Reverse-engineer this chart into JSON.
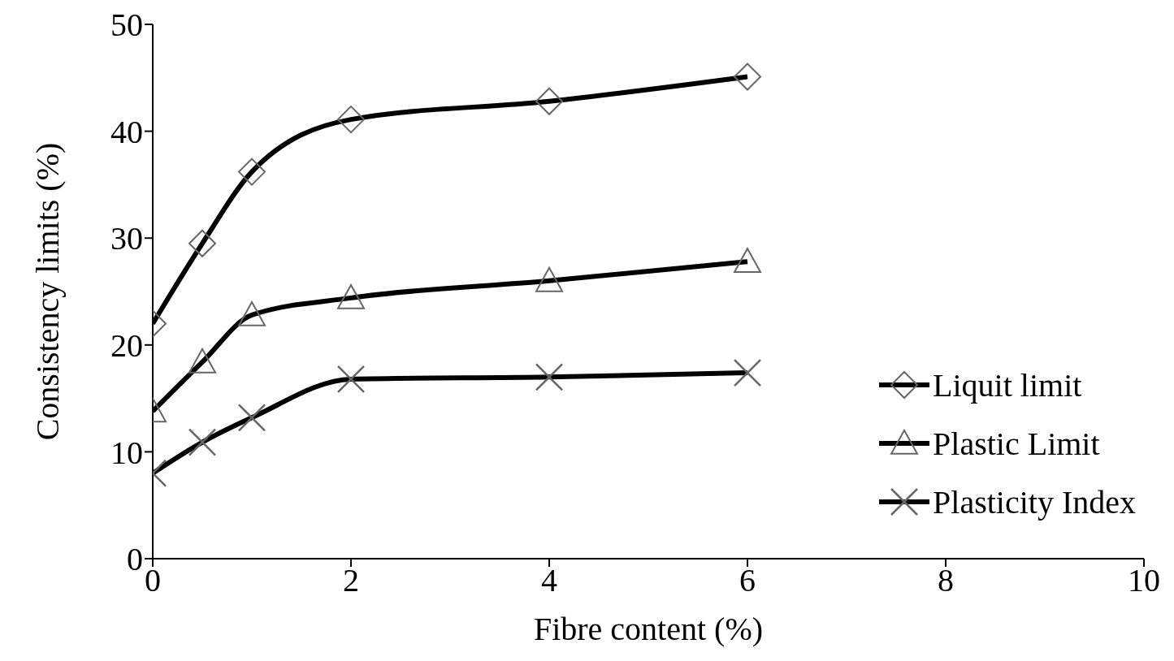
{
  "chart_data": {
    "type": "line",
    "xlabel": "Fibre content  (%)",
    "ylabel": "Consistency limits (%)",
    "x": [
      0,
      0.5,
      1,
      2,
      4,
      6
    ],
    "series": [
      {
        "name": "Liquit limit",
        "color": "#000000",
        "marker": "diamond",
        "values": [
          22.0,
          29.5,
          36.2,
          41.1,
          42.8,
          45.1
        ]
      },
      {
        "name": "Plastic Limit",
        "color": "#000000",
        "marker": "triangle",
        "values": [
          13.8,
          18.4,
          22.8,
          24.4,
          26.0,
          27.8
        ]
      },
      {
        "name": "Plasticity Index",
        "color": "#000000",
        "marker": "cross",
        "values": [
          8.0,
          10.9,
          13.2,
          16.8,
          17.0,
          17.4
        ]
      }
    ],
    "xlim": [
      0,
      10
    ],
    "xticks": [
      0,
      2,
      4,
      6,
      8,
      10
    ],
    "ylim": [
      0,
      50
    ],
    "yticks": [
      0,
      10,
      20,
      30,
      40,
      50
    ],
    "grid": false,
    "legend": "right",
    "line_style": "solid"
  }
}
